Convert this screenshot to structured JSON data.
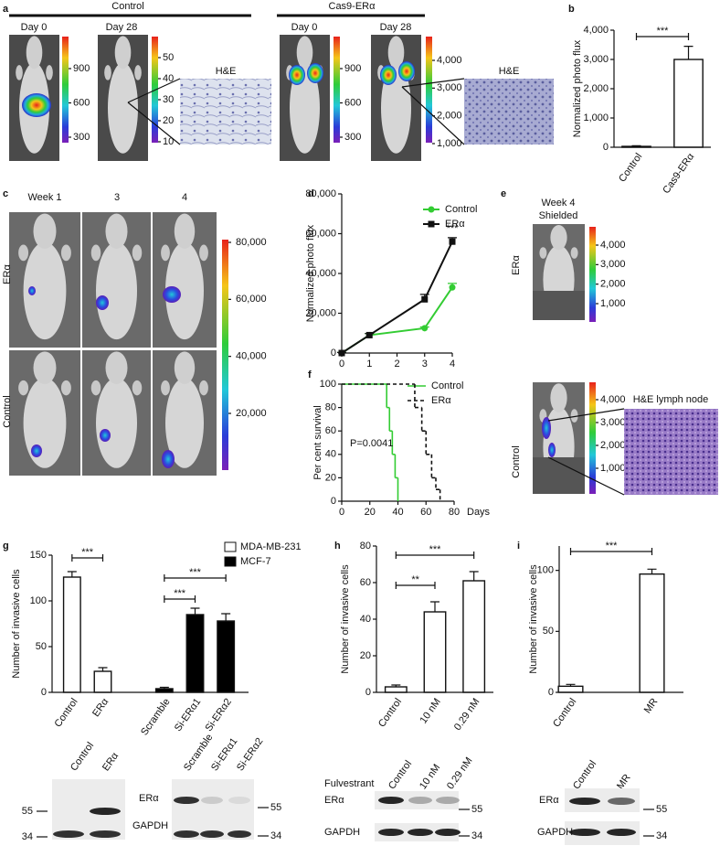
{
  "panel_labels": [
    "a",
    "b",
    "c",
    "d",
    "e",
    "f",
    "g",
    "h",
    "i"
  ],
  "a": {
    "groups": [
      "Control",
      "Cas9-ERα"
    ],
    "image_labels": [
      "Day 0",
      "Day 28",
      "Day 0",
      "Day 28"
    ],
    "insets": [
      "H&E",
      "H&E"
    ],
    "colorbars": [
      [
        900,
        600,
        300
      ],
      [
        50,
        40,
        30,
        20,
        10
      ],
      [
        900,
        600,
        300
      ],
      [
        {
          "value": 4000,
          "label": "4,000"
        },
        {
          "value": 3000,
          "label": "3,000"
        },
        {
          "value": 2000,
          "label": "2,000"
        },
        {
          "value": 1000,
          "label": "1,000"
        }
      ]
    ]
  },
  "c": {
    "column_labels": [
      "Week 1",
      "3",
      "4"
    ],
    "row_labels": [
      "ERα",
      "Control"
    ],
    "colorbar": [
      {
        "value": 80000,
        "label": "80,000"
      },
      {
        "value": 60000,
        "label": "60,000"
      },
      {
        "value": 40000,
        "label": "40,000"
      },
      {
        "value": 20000,
        "label": "20,000"
      }
    ]
  },
  "e": {
    "title": [
      "Week 4",
      "Shielded"
    ],
    "row_labels": [
      "ERα",
      "Control"
    ],
    "inset": "H&E lymph node",
    "colorbars": [
      [
        {
          "value": 4000,
          "label": "4,000"
        },
        {
          "value": 3000,
          "label": "3,000"
        },
        {
          "value": 2000,
          "label": "2,000"
        },
        {
          "value": 1000,
          "label": "1,000"
        }
      ],
      [
        {
          "value": 4000,
          "label": "4,000"
        },
        {
          "value": 3000,
          "label": "3,000"
        },
        {
          "value": 2000,
          "label": "2,000"
        },
        {
          "value": 1000,
          "label": "1,000"
        }
      ]
    ]
  },
  "blots": {
    "g": {
      "lanes": [
        "Control",
        "ERα",
        "Scramble",
        "Si-ERα1",
        "Si-ERα2"
      ],
      "bands": [
        "ERα",
        "GAPDH"
      ],
      "markers_left": [
        55,
        34
      ],
      "markers_right": [
        55,
        34
      ]
    },
    "h": {
      "treatment": "Fulvestrant",
      "lanes": [
        "Control",
        "10 nM",
        "0.29 nM"
      ],
      "bands": [
        "ERα",
        "GAPDH"
      ],
      "markers": [
        55,
        34
      ]
    },
    "i": {
      "lanes": [
        "Control",
        "MR"
      ],
      "bands": [
        "ERα",
        "GAPDH"
      ],
      "markers": [
        55,
        34
      ]
    }
  },
  "chart_data": [
    {
      "type": "bar",
      "ylabel": "Normalized photo flux",
      "categories": [
        "Control",
        "Cas9-ERα"
      ],
      "values": [
        30,
        3000
      ],
      "errors": [
        20,
        450
      ],
      "color": "#ffffff",
      "ylim": [
        0,
        4000
      ],
      "yticks": [
        0,
        {
          "value": 1000,
          "label": "1,000"
        },
        {
          "value": 2000,
          "label": "2,000"
        },
        {
          "value": 3000,
          "label": "3,000"
        },
        {
          "value": 4000,
          "label": "4,000"
        }
      ],
      "annotations": [
        "***"
      ]
    },
    {
      "type": "line",
      "ylabel": "Normalized photo flux",
      "x": [
        0,
        1,
        3,
        4
      ],
      "series": [
        {
          "name": "Control",
          "color": "#33cc33",
          "marker": "circle",
          "values": [
            0,
            9000,
            12500,
            33000
          ],
          "errors": [
            300,
            800,
            600,
            2000
          ]
        },
        {
          "name": "ERα",
          "color": "#111111",
          "marker": "square",
          "values": [
            0,
            9000,
            27000,
            56000
          ],
          "errors": [
            300,
            800,
            2500,
            2000
          ]
        }
      ],
      "xlim": [
        0,
        4
      ],
      "xticks": [
        0,
        1,
        2,
        3,
        4
      ],
      "ylim": [
        0,
        80000
      ],
      "yticks": [
        0,
        {
          "value": 20000,
          "label": "20,000"
        },
        {
          "value": 40000,
          "label": "40,000"
        },
        {
          "value": 60000,
          "label": "60,000"
        },
        {
          "value": 80000,
          "label": "80,000"
        }
      ],
      "annotations": [
        "***"
      ],
      "legend": "upper right"
    },
    {
      "type": "step",
      "xlabel": "Days",
      "ylabel": "Per cent survival",
      "series": [
        {
          "name": "Control",
          "color": "#33cc33",
          "dashed": false,
          "x": [
            0,
            32,
            34,
            36,
            38,
            40
          ],
          "values": [
            100,
            80,
            60,
            40,
            20,
            0
          ]
        },
        {
          "name": "ERα",
          "color": "#111111",
          "dashed": true,
          "x": [
            0,
            52,
            57,
            60,
            64,
            67,
            70
          ],
          "values": [
            100,
            80,
            60,
            40,
            20,
            10,
            0
          ]
        }
      ],
      "xlim": [
        0,
        80
      ],
      "xticks": [
        0,
        20,
        40,
        60,
        80
      ],
      "ylim": [
        0,
        100
      ],
      "yticks": [
        0,
        20,
        40,
        60,
        80,
        100
      ],
      "annotations": [
        "P=0.0041"
      ],
      "legend": "upper right"
    },
    {
      "type": "bar",
      "ylabel": "Number of invasive cells",
      "categories": [
        "Control",
        "ERα",
        null,
        "Scramble",
        "Si-ERα1",
        "Si-ERα2"
      ],
      "series": [
        {
          "name": "MDA-MB-231",
          "color": "#ffffff",
          "values": [
            126,
            23,
            null,
            null,
            null,
            null
          ],
          "errors": [
            6,
            4,
            null,
            null,
            null,
            null
          ]
        },
        {
          "name": "MCF-7",
          "color": "#000000",
          "values": [
            null,
            null,
            null,
            4,
            85,
            78
          ],
          "errors": [
            null,
            null,
            null,
            1.5,
            7,
            8
          ]
        }
      ],
      "ylim": [
        0,
        150
      ],
      "yticks": [
        0,
        50,
        100,
        150
      ],
      "annotations": [
        "***",
        "***",
        "***"
      ],
      "legend": "upper right"
    },
    {
      "type": "bar",
      "ylabel": "Number of invasive cells",
      "categories": [
        "Control",
        "10 nM",
        "0.29 nM"
      ],
      "values": [
        3,
        44,
        61
      ],
      "errors": [
        1,
        5.5,
        5
      ],
      "color": "#ffffff",
      "ylim": [
        0,
        80
      ],
      "yticks": [
        0,
        20,
        40,
        60,
        80
      ],
      "annotations": [
        "**",
        "***"
      ]
    },
    {
      "type": "bar",
      "ylabel": "Number of invasive cells",
      "categories": [
        "Control",
        "MR"
      ],
      "values": [
        5,
        97
      ],
      "errors": [
        1.5,
        4
      ],
      "color": "#ffffff",
      "ylim": [
        0,
        120
      ],
      "yticks": [
        0,
        50,
        100
      ],
      "annotations": [
        "***"
      ]
    }
  ]
}
